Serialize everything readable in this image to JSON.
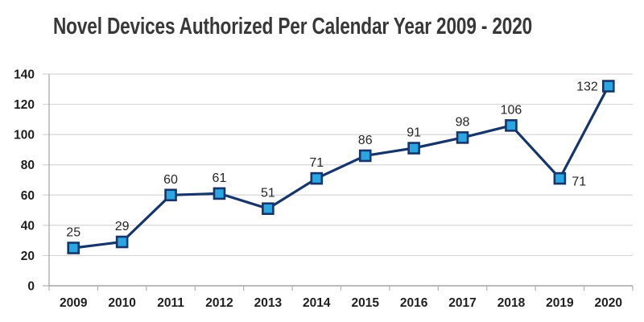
{
  "page": {
    "background": "#ffffff"
  },
  "chart_data": {
    "type": "line",
    "title": "Novel Devices Authorized Per Calendar Year 2009 - 2020",
    "categories": [
      "2009",
      "2010",
      "2011",
      "2012",
      "2013",
      "2014",
      "2015",
      "2016",
      "2017",
      "2018",
      "2019",
      "2020"
    ],
    "values": [
      25,
      29,
      60,
      61,
      51,
      71,
      86,
      91,
      98,
      106,
      71,
      132
    ],
    "data_labels": [
      "25",
      "29",
      "60",
      "61",
      "51",
      "71",
      "86",
      "91",
      "98",
      "106",
      "71",
      "132"
    ],
    "label_positions": [
      "above",
      "above",
      "above",
      "above",
      "above",
      "above",
      "above",
      "above",
      "above",
      "above",
      "right",
      "left"
    ],
    "xlabel": "",
    "ylabel": "",
    "ylim": [
      0,
      140
    ],
    "yticks": [
      0,
      20,
      40,
      60,
      80,
      100,
      120,
      140
    ],
    "grid": "horizontal",
    "legend": "none",
    "tick_marks": "outside",
    "x_ticks_between_categories": true,
    "marker": "square",
    "colors": {
      "line": "#16356b",
      "marker_fill": "#2aa7e3",
      "marker_border": "#16356b",
      "gridline": "#d6d6d6",
      "axis_line": "#a3a3a3",
      "tick": "#b0b0b0",
      "title_text": "#383838",
      "axis_text": "#1f1f1f",
      "data_label_text": "#262626"
    }
  }
}
